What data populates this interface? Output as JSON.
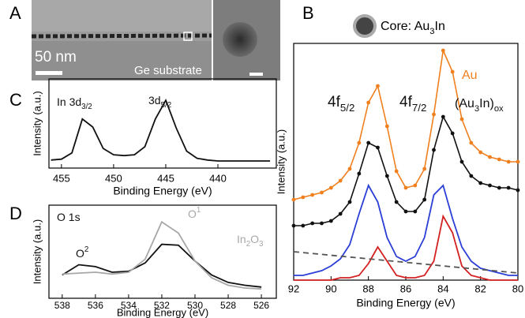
{
  "image_panel": {
    "label": "A",
    "scale_bar": "50 nm",
    "caption": "Ge substrate"
  },
  "core_label": {
    "parts": [
      {
        "text": "Core: Au"
      },
      {
        "sub": "3"
      },
      {
        "text": "In"
      }
    ]
  },
  "chart_data": [
    {
      "type": "line",
      "panel_label": "B",
      "x_label": "Binding Energy (eV)",
      "y_label": "Intensity (a.u.)",
      "xlim": [
        92,
        80
      ],
      "ylim": [
        0,
        100
      ],
      "xticks": [
        92,
        90,
        88,
        86,
        84,
        82,
        80
      ],
      "x": [
        92,
        91.5,
        91,
        90.5,
        90,
        89.5,
        89,
        88.5,
        88,
        87.5,
        87,
        86.5,
        86,
        85.5,
        85,
        84.5,
        84,
        83.5,
        83,
        82.5,
        82,
        81.5,
        81,
        80.5,
        80
      ],
      "series": [
        {
          "color": "#f07f1e",
          "marker": true,
          "values": [
            34,
            35,
            36,
            37,
            39,
            42,
            47,
            58,
            75,
            82,
            65,
            46,
            39,
            40,
            47,
            70,
            97,
            88,
            68,
            58,
            54,
            52,
            51,
            50,
            50
          ]
        },
        {
          "color": "#111111",
          "marker": true,
          "values": [
            23,
            23,
            24,
            24,
            25,
            28,
            33,
            45,
            58,
            56,
            44,
            33,
            29,
            29,
            34,
            55,
            69,
            62,
            50,
            44,
            41,
            40,
            39,
            39,
            38
          ]
        },
        {
          "color": "#2b3fd6",
          "values": [
            2,
            2,
            3,
            4,
            6,
            9,
            15,
            28,
            40,
            33,
            18,
            10,
            8,
            10,
            18,
            36,
            40,
            26,
            14,
            8,
            5,
            4,
            3,
            2,
            2
          ]
        },
        {
          "color": "#d42020",
          "values": [
            0,
            0,
            0,
            0,
            0,
            1,
            1,
            2,
            7,
            14,
            8,
            2,
            1,
            1,
            2,
            8,
            27,
            20,
            6,
            2,
            1,
            0,
            0,
            0,
            0
          ]
        },
        {
          "color": "#555555",
          "dashed": true,
          "x": [
            92,
            80
          ],
          "values": [
            12,
            3
          ]
        }
      ],
      "annotations": [
        {
          "color": "#f07f1e",
          "parts": [
            {
              "text": "Au"
            }
          ]
        },
        {
          "color": "#111111",
          "parts": [
            {
              "text": "4f"
            },
            {
              "sub": "5/2"
            }
          ]
        },
        {
          "color": "#111111",
          "parts": [
            {
              "text": "4f"
            },
            {
              "sub": "7/2"
            }
          ]
        },
        {
          "color": "#111111",
          "parts": [
            {
              "text": "(Au"
            },
            {
              "sub": "3"
            },
            {
              "text": "In)"
            },
            {
              "sub": "ox"
            }
          ]
        }
      ]
    },
    {
      "type": "line",
      "panel_label": "C",
      "x_label": "Binding Energy (eV)",
      "y_label": "Intensity (a.u.)",
      "xlim": [
        456.2,
        434.4
      ],
      "ylim": [
        0,
        100
      ],
      "xticks": [
        455,
        450,
        445,
        440
      ],
      "x": [
        456,
        455,
        454,
        453,
        452,
        451,
        450,
        449,
        448,
        447,
        446,
        445,
        444,
        443,
        442,
        441,
        440,
        439,
        438,
        437,
        436,
        435
      ],
      "series": [
        {
          "color": "#111111",
          "values": [
            9,
            10,
            17,
            55,
            46,
            22,
            15,
            14,
            15,
            24,
            55,
            76,
            45,
            19,
            11,
            9,
            8,
            8,
            8,
            8,
            8,
            8
          ]
        }
      ],
      "annotations": [
        {
          "color": "#111111",
          "parts": [
            {
              "text": "In 3d"
            },
            {
              "sub": "3/2"
            }
          ]
        },
        {
          "color": "#111111",
          "parts": [
            {
              "text": "3d"
            },
            {
              "sub": "5/2"
            }
          ]
        }
      ]
    },
    {
      "type": "line",
      "panel_label": "D",
      "x_label": "Binding Energy (eV)",
      "y_label": "Intensity (a.u.)",
      "xlim": [
        538.8,
        525.1
      ],
      "ylim": [
        0,
        100
      ],
      "xticks": [
        538,
        536,
        534,
        532,
        530,
        528,
        526
      ],
      "x": [
        538,
        537,
        536,
        535,
        534,
        533,
        532,
        531,
        530,
        529,
        528,
        527,
        526
      ],
      "series": [
        {
          "color": "#111111",
          "values": [
            25,
            36,
            34,
            28,
            29,
            38,
            58,
            57,
            40,
            25,
            17,
            14,
            12
          ]
        },
        {
          "color": "#a8a8a8",
          "values": [
            26,
            27,
            28,
            26,
            28,
            42,
            82,
            70,
            40,
            22,
            14,
            11,
            10
          ]
        }
      ],
      "annotations": [
        {
          "color": "#111111",
          "parts": [
            {
              "text": "O 1s"
            }
          ]
        },
        {
          "color": "#111111",
          "parts": [
            {
              "text": "O"
            },
            {
              "sup": "2"
            }
          ]
        },
        {
          "color": "#a8a8a8",
          "parts": [
            {
              "text": "O"
            },
            {
              "sup": "1"
            }
          ]
        },
        {
          "color": "#a8a8a8",
          "parts": [
            {
              "text": "In"
            },
            {
              "sub": "2"
            },
            {
              "text": "O"
            },
            {
              "sub": "3"
            }
          ]
        }
      ]
    }
  ]
}
